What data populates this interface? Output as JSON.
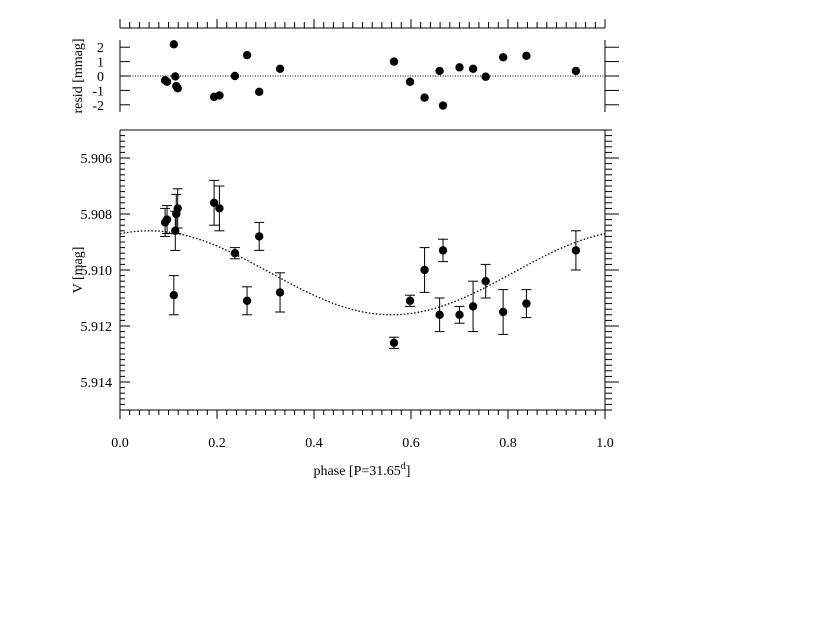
{
  "chart_data": [
    {
      "type": "scatter",
      "panel": "residuals",
      "ylabel": "resid [mmag]",
      "xlim": [
        0.0,
        1.0
      ],
      "ylim": [
        -2.5,
        2.5
      ],
      "yticks": [
        2,
        1,
        0,
        -1,
        -2
      ],
      "ytick_labels": [
        "2",
        "1",
        "0",
        "-1",
        "-2"
      ],
      "zero_line": true,
      "points": [
        {
          "x": 0.093,
          "y": -0.3
        },
        {
          "x": 0.097,
          "y": -0.4
        },
        {
          "x": 0.111,
          "y": 2.2
        },
        {
          "x": 0.114,
          "y": -0.03
        },
        {
          "x": 0.116,
          "y": -0.7
        },
        {
          "x": 0.119,
          "y": -0.85
        },
        {
          "x": 0.194,
          "y": -1.45
        },
        {
          "x": 0.205,
          "y": -1.35
        },
        {
          "x": 0.237,
          "y": 0.0
        },
        {
          "x": 0.262,
          "y": 1.45
        },
        {
          "x": 0.287,
          "y": -1.1
        },
        {
          "x": 0.33,
          "y": 0.5
        },
        {
          "x": 0.565,
          "y": 1.0
        },
        {
          "x": 0.598,
          "y": -0.4
        },
        {
          "x": 0.628,
          "y": -1.5
        },
        {
          "x": 0.659,
          "y": 0.35
        },
        {
          "x": 0.666,
          "y": -2.05
        },
        {
          "x": 0.7,
          "y": 0.6
        },
        {
          "x": 0.728,
          "y": 0.5
        },
        {
          "x": 0.754,
          "y": -0.05
        },
        {
          "x": 0.79,
          "y": 1.3
        },
        {
          "x": 0.838,
          "y": 1.4
        },
        {
          "x": 0.94,
          "y": 0.35
        }
      ]
    },
    {
      "type": "scatter",
      "panel": "lightcurve",
      "xlabel_prefix": "phase [P=31.65",
      "xlabel_sup": "d",
      "xlabel_suffix": "]",
      "ylabel": "V [mag]",
      "xlim": [
        0.0,
        1.0
      ],
      "ylim": [
        5.915,
        5.905
      ],
      "xticks": [
        0.0,
        0.2,
        0.4,
        0.6,
        0.8,
        1.0
      ],
      "xtick_labels": [
        "0.0",
        "0.2",
        "0.4",
        "0.6",
        "0.8",
        "1.0"
      ],
      "yticks": [
        5.906,
        5.908,
        5.91,
        5.912,
        5.914
      ],
      "ytick_labels": [
        "5.906",
        "5.908",
        "5.910",
        "5.912",
        "5.914"
      ],
      "fit": {
        "style": "dotted",
        "mean": 5.9101,
        "amplitude": 0.0015,
        "phase_of_minimum": 0.56
      },
      "points": [
        {
          "x": 0.093,
          "y": 5.9083,
          "err": 0.0005
        },
        {
          "x": 0.097,
          "y": 5.9082,
          "err": 0.0005
        },
        {
          "x": 0.111,
          "y": 5.9109,
          "err": 0.0007
        },
        {
          "x": 0.114,
          "y": 5.9086,
          "err": 0.0007
        },
        {
          "x": 0.116,
          "y": 5.908,
          "err": 0.0007
        },
        {
          "x": 0.119,
          "y": 5.9078,
          "err": 0.0007
        },
        {
          "x": 0.194,
          "y": 5.9076,
          "err": 0.0008
        },
        {
          "x": 0.205,
          "y": 5.9078,
          "err": 0.0008
        },
        {
          "x": 0.237,
          "y": 5.9094,
          "err": 0.0002
        },
        {
          "x": 0.262,
          "y": 5.9111,
          "err": 0.0005
        },
        {
          "x": 0.287,
          "y": 5.9088,
          "err": 0.0005
        },
        {
          "x": 0.33,
          "y": 5.9108,
          "err": 0.0007
        },
        {
          "x": 0.565,
          "y": 5.9126,
          "err": 0.0002
        },
        {
          "x": 0.598,
          "y": 5.9111,
          "err": 0.0002
        },
        {
          "x": 0.628,
          "y": 5.91,
          "err": 0.0008
        },
        {
          "x": 0.659,
          "y": 5.9116,
          "err": 0.0006
        },
        {
          "x": 0.666,
          "y": 5.9093,
          "err": 0.0004
        },
        {
          "x": 0.7,
          "y": 5.9116,
          "err": 0.0003
        },
        {
          "x": 0.728,
          "y": 5.9113,
          "err": 0.0009
        },
        {
          "x": 0.754,
          "y": 5.9104,
          "err": 0.0006
        },
        {
          "x": 0.79,
          "y": 5.9115,
          "err": 0.0008
        },
        {
          "x": 0.838,
          "y": 5.9112,
          "err": 0.0005
        },
        {
          "x": 0.94,
          "y": 5.9093,
          "err": 0.0007
        }
      ]
    }
  ]
}
